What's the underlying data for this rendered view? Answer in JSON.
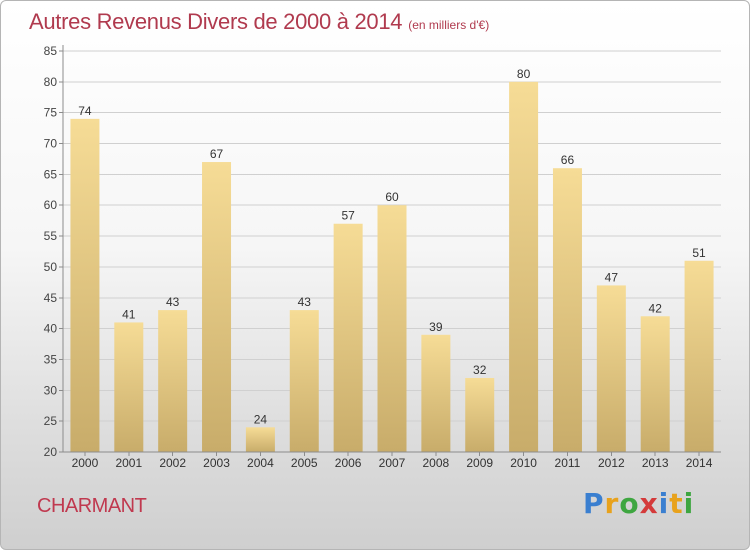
{
  "title": "Autres Revenus Divers de 2000 à 2014",
  "subtitle": "(en milliers d'€)",
  "commune": "CHARMANT",
  "logo": {
    "text": "Proxiti",
    "letters": [
      {
        "char": "P",
        "color": "#3a7fd0"
      },
      {
        "char": "r",
        "color": "#e8a21c"
      },
      {
        "char": "o",
        "color": "#3ea640"
      },
      {
        "char": "x",
        "color": "#d43a3a"
      },
      {
        "char": "i",
        "color": "#3a7fd0"
      },
      {
        "char": "t",
        "color": "#e8a21c"
      },
      {
        "char": "i",
        "color": "#3ea640"
      }
    ]
  },
  "colors": {
    "title": "#b03a4e",
    "bar_light": "#f6dc96",
    "bar_dark": "#c8ac6a",
    "grid": "#d0d0d0",
    "axis": "#8c8c8c"
  },
  "chart_data": {
    "type": "bar",
    "categories": [
      "2000",
      "2001",
      "2002",
      "2003",
      "2004",
      "2005",
      "2006",
      "2007",
      "2008",
      "2009",
      "2010",
      "2011",
      "2012",
      "2013",
      "2014"
    ],
    "values": [
      74,
      41,
      43,
      67,
      24,
      43,
      57,
      60,
      39,
      32,
      80,
      66,
      47,
      42,
      51
    ],
    "ylim": [
      20,
      85
    ],
    "yticks": [
      20,
      25,
      30,
      35,
      40,
      45,
      50,
      55,
      60,
      65,
      70,
      75,
      80,
      85
    ],
    "grid": true,
    "data_labels": true
  }
}
